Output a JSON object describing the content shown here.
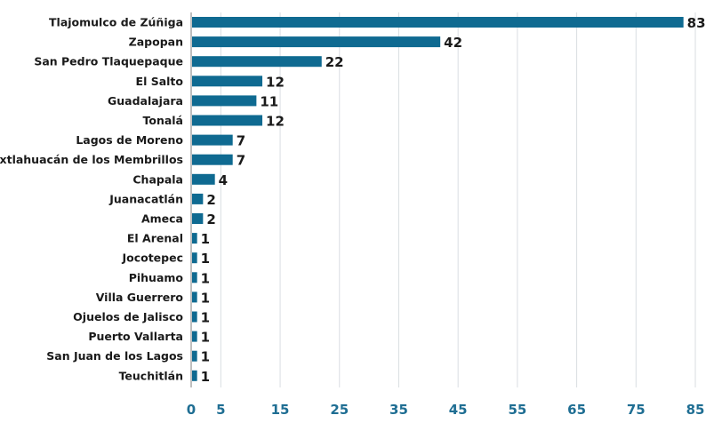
{
  "chart_data": {
    "type": "bar",
    "orientation": "horizontal",
    "title": "",
    "xlabel": "",
    "ylabel": "",
    "categories": [
      "Tlajomulco de Zúñiga",
      "Zapopan",
      "San Pedro Tlaquepaque",
      "El Salto",
      "Guadalajara",
      "Tonalá",
      "Lagos de Moreno",
      "Ixtlahuacán de los Membrillos",
      "Chapala",
      "Juanacatlán",
      "Ameca",
      "El Arenal",
      "Jocotepec",
      "Pihuamo",
      "Villa Guerrero",
      "Ojuelos de Jalisco",
      "Puerto Vallarta",
      "San Juan de los Lagos",
      "Teuchitlán"
    ],
    "values": [
      83,
      42,
      22,
      12,
      11,
      12,
      7,
      7,
      4,
      2,
      2,
      1,
      1,
      1,
      1,
      1,
      1,
      1,
      1
    ],
    "xlim": [
      0,
      85
    ],
    "xticks": [
      0,
      5,
      15,
      25,
      35,
      45,
      55,
      65,
      75,
      85
    ],
    "grid": true,
    "legend": "none",
    "bar_color": "#0f6a91",
    "tick_color": "#1f6e93"
  }
}
